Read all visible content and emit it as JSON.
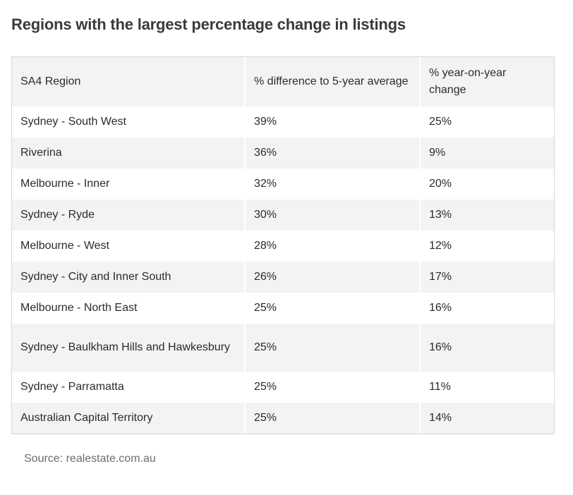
{
  "title": "Regions with the largest percentage change in listings",
  "table": {
    "headers": [
      "SA4 Region",
      "% difference to 5-year average",
      "% year-on-year change"
    ],
    "rows": [
      [
        "Sydney - South West",
        "39%",
        "25%"
      ],
      [
        "Riverina",
        "36%",
        "9%"
      ],
      [
        "Melbourne - Inner",
        "32%",
        "20%"
      ],
      [
        "Sydney - Ryde",
        "30%",
        "13%"
      ],
      [
        "Melbourne - West",
        "28%",
        "12%"
      ],
      [
        "Sydney - City and Inner South",
        "26%",
        "17%"
      ],
      [
        "Melbourne - North East",
        "25%",
        "16%"
      ],
      [
        "Sydney - Baulkham Hills and Hawkesbury",
        "25%",
        "16%"
      ],
      [
        "Sydney - Parramatta",
        "25%",
        "11%"
      ],
      [
        "Australian Capital Territory",
        "25%",
        "14%"
      ]
    ]
  },
  "source": "Source: realestate.com.au"
}
